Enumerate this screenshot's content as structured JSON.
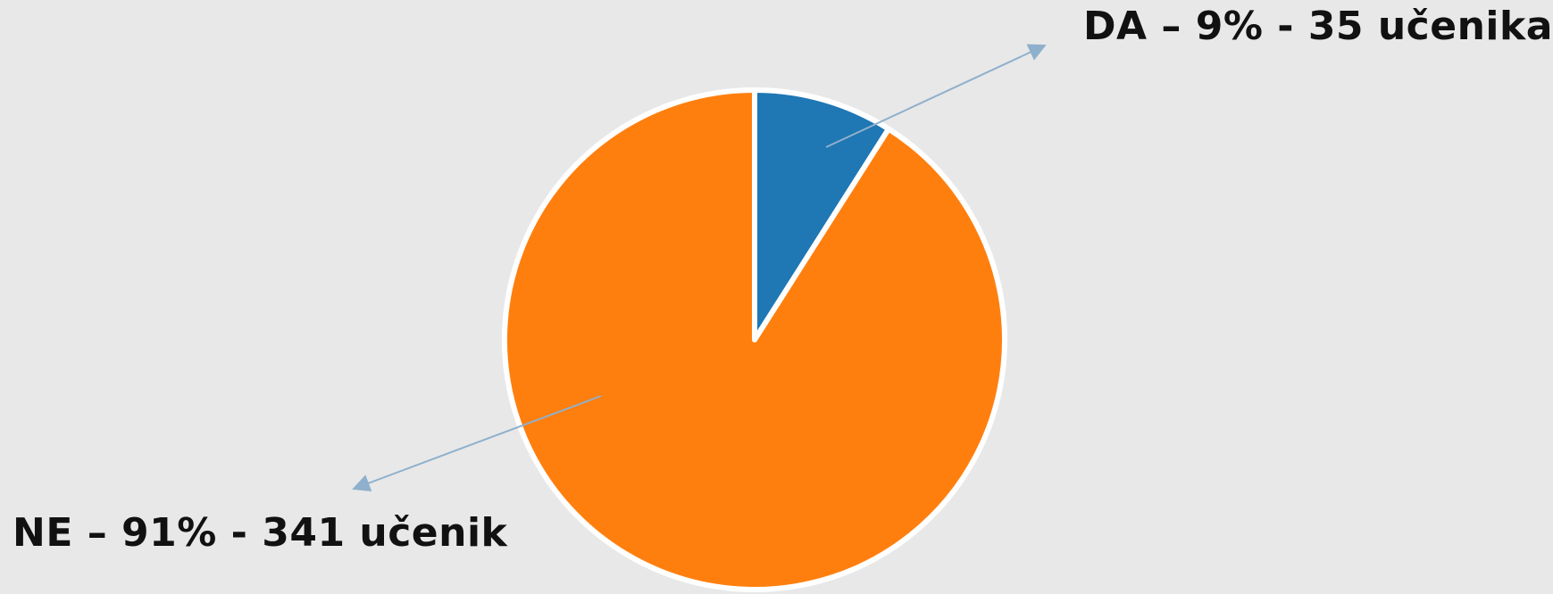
{
  "chart_data": {
    "type": "pie",
    "slices": [
      {
        "category": "DA",
        "percent": 9,
        "count": 35,
        "label": "DA – 9% - 35 učenika",
        "color": "#1f77b4"
      },
      {
        "category": "NE",
        "percent": 91,
        "count": 341,
        "label": "NE – 91% - 341 učenik",
        "color": "#ff7f0e"
      }
    ],
    "start_angle_deg": 0,
    "direction": "clockwise",
    "slice_border_color": "#ffffff",
    "leader_line_color": "#8fb0cc"
  }
}
